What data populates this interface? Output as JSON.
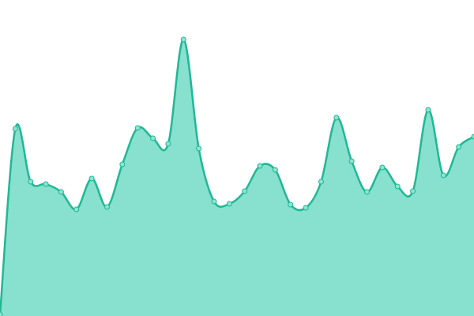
{
  "chart_data": {
    "type": "area",
    "x": [
      0,
      1,
      2,
      3,
      4,
      5,
      6,
      7,
      8,
      9,
      10,
      11,
      12,
      13,
      14,
      15,
      16,
      17,
      18,
      19,
      20,
      21,
      22,
      23,
      24,
      25,
      26,
      27,
      28,
      29,
      30,
      31
    ],
    "values": [
      2,
      237,
      170,
      167,
      157,
      135,
      174,
      138,
      192,
      238,
      225,
      218,
      350,
      212,
      145,
      142,
      158,
      190,
      185,
      141,
      137,
      170,
      251,
      196,
      157,
      188,
      164,
      158,
      261,
      178,
      214,
      227
    ],
    "xlim": [
      0,
      31
    ],
    "ylim": [
      0,
      400
    ],
    "color": "#1fb894",
    "fill": "#88e0cf",
    "marker_color": "#8fe3d2"
  }
}
